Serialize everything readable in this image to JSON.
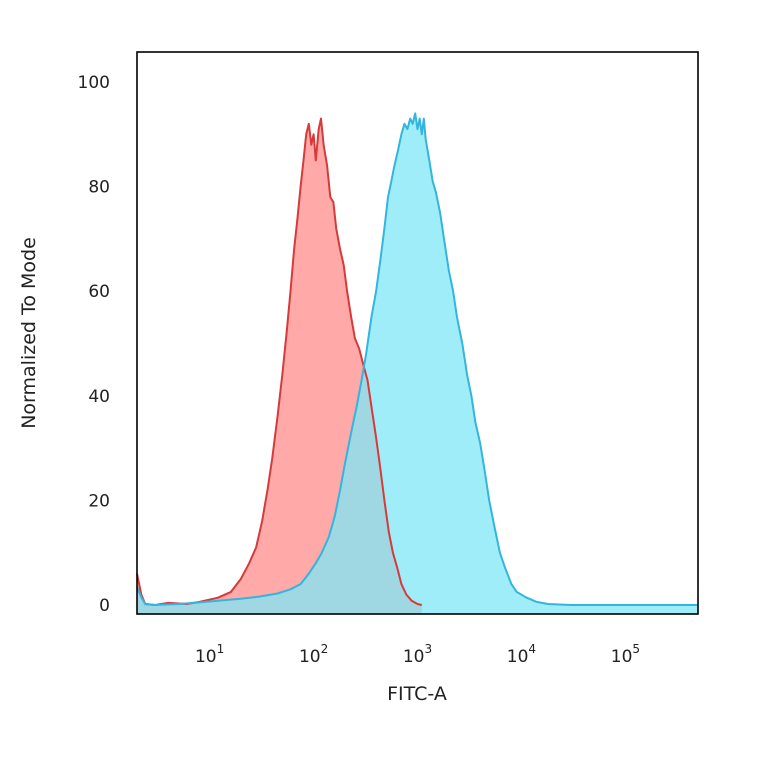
{
  "chart_data": {
    "type": "area",
    "title": "",
    "xlabel": "FITC-A",
    "ylabel": "Normalized To Mode",
    "x_scale": "log",
    "xlim": [
      2,
      500000
    ],
    "ylim": [
      0,
      100
    ],
    "grid": false,
    "legend": "none",
    "x_ticks": [
      {
        "value": 10,
        "base": "10",
        "exp": "1"
      },
      {
        "value": 100,
        "base": "10",
        "exp": "2"
      },
      {
        "value": 1000,
        "base": "10",
        "exp": "3"
      },
      {
        "value": 10000,
        "base": "10",
        "exp": "4"
      },
      {
        "value": 100000,
        "base": "10",
        "exp": "5"
      }
    ],
    "y_ticks": [
      {
        "value": 0,
        "label": "0"
      },
      {
        "value": 20,
        "label": "20"
      },
      {
        "value": 40,
        "label": "40"
      },
      {
        "value": 60,
        "label": "60"
      },
      {
        "value": 80,
        "label": "80"
      },
      {
        "value": 100,
        "label": "100"
      }
    ],
    "series": [
      {
        "fill": "#ff8c8c",
        "stroke": "#d63a3a",
        "points": [
          [
            2,
            6
          ],
          [
            2.2,
            2
          ],
          [
            2.4,
            0.2
          ],
          [
            3,
            0
          ],
          [
            4,
            0.4
          ],
          [
            6,
            0.2
          ],
          [
            8,
            0.6
          ],
          [
            12,
            1.4
          ],
          [
            16,
            2.5
          ],
          [
            20,
            5
          ],
          [
            24,
            8
          ],
          [
            28,
            11
          ],
          [
            32,
            16
          ],
          [
            36,
            22
          ],
          [
            40,
            28
          ],
          [
            45,
            36
          ],
          [
            50,
            44
          ],
          [
            55,
            52
          ],
          [
            60,
            60
          ],
          [
            65,
            68
          ],
          [
            70,
            74
          ],
          [
            75,
            80
          ],
          [
            80,
            85
          ],
          [
            85,
            90
          ],
          [
            90,
            92
          ],
          [
            95,
            88
          ],
          [
            100,
            90
          ],
          [
            105,
            85
          ],
          [
            112,
            91
          ],
          [
            118,
            93
          ],
          [
            125,
            88
          ],
          [
            135,
            84
          ],
          [
            145,
            78
          ],
          [
            155,
            77
          ],
          [
            165,
            72
          ],
          [
            180,
            68
          ],
          [
            195,
            65
          ],
          [
            210,
            60
          ],
          [
            230,
            55
          ],
          [
            250,
            51
          ],
          [
            275,
            49
          ],
          [
            300,
            46
          ],
          [
            330,
            43
          ],
          [
            360,
            38
          ],
          [
            400,
            32
          ],
          [
            440,
            26
          ],
          [
            480,
            20
          ],
          [
            530,
            14
          ],
          [
            580,
            10
          ],
          [
            640,
            7
          ],
          [
            700,
            4
          ],
          [
            780,
            2
          ],
          [
            880,
            0.8
          ],
          [
            1000,
            0.2
          ],
          [
            1100,
            0
          ]
        ]
      },
      {
        "fill": "#7fe7f7",
        "stroke": "#33b5dd",
        "points": [
          [
            2,
            3.5
          ],
          [
            2.2,
            1.5
          ],
          [
            2.4,
            0.2
          ],
          [
            3,
            0
          ],
          [
            5,
            0.2
          ],
          [
            8,
            0.5
          ],
          [
            12,
            0.8
          ],
          [
            20,
            1.2
          ],
          [
            30,
            1.6
          ],
          [
            45,
            2.2
          ],
          [
            60,
            3
          ],
          [
            75,
            4
          ],
          [
            90,
            6
          ],
          [
            105,
            8
          ],
          [
            120,
            10
          ],
          [
            140,
            13
          ],
          [
            160,
            17
          ],
          [
            180,
            22
          ],
          [
            200,
            27
          ],
          [
            230,
            33
          ],
          [
            260,
            38
          ],
          [
            290,
            43
          ],
          [
            320,
            48
          ],
          [
            360,
            55
          ],
          [
            400,
            60
          ],
          [
            440,
            66
          ],
          [
            480,
            72
          ],
          [
            520,
            78
          ],
          [
            560,
            81
          ],
          [
            600,
            84
          ],
          [
            650,
            87
          ],
          [
            700,
            90
          ],
          [
            750,
            92
          ],
          [
            800,
            91
          ],
          [
            850,
            93
          ],
          [
            900,
            92
          ],
          [
            950,
            94
          ],
          [
            1000,
            91
          ],
          [
            1050,
            93
          ],
          [
            1100,
            90
          ],
          [
            1150,
            93
          ],
          [
            1200,
            89
          ],
          [
            1300,
            85
          ],
          [
            1400,
            81
          ],
          [
            1500,
            79
          ],
          [
            1650,
            75
          ],
          [
            1800,
            70
          ],
          [
            2000,
            64
          ],
          [
            2200,
            60
          ],
          [
            2400,
            55
          ],
          [
            2700,
            50
          ],
          [
            3000,
            44
          ],
          [
            3300,
            40
          ],
          [
            3600,
            35
          ],
          [
            4000,
            31
          ],
          [
            4400,
            26
          ],
          [
            4900,
            20
          ],
          [
            5500,
            15
          ],
          [
            6200,
            10
          ],
          [
            7000,
            7
          ],
          [
            8000,
            4
          ],
          [
            9000,
            2.5
          ],
          [
            11000,
            1.5
          ],
          [
            14000,
            0.6
          ],
          [
            18000,
            0.2
          ],
          [
            30000,
            0
          ],
          [
            500000,
            0
          ]
        ]
      }
    ]
  }
}
